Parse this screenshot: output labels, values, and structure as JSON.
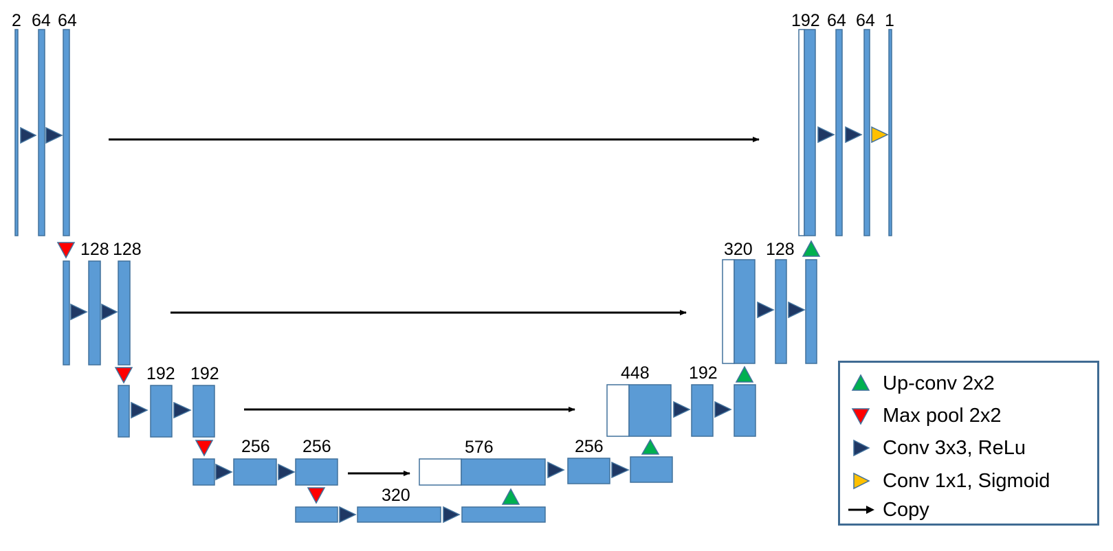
{
  "colors": {
    "block": "#5b9bd5",
    "block_border": "#41719c",
    "conv": "#1f3864",
    "maxpool": "#ff0000",
    "upconv": "#00b050",
    "sigmoid": "#ffc000",
    "arrow": "#000000",
    "legend_border": "#3f6b93"
  },
  "channel_labels": {
    "enc1_in": "2",
    "enc1_a": "64",
    "enc1_b": "64",
    "enc2_a": "128",
    "enc2_b": "128",
    "enc3_a": "192",
    "enc3_b": "192",
    "enc4_a": "256",
    "enc4_b": "256",
    "bottleneck": "320",
    "dec4_concat": "576",
    "dec4_a": "256",
    "dec3_concat": "448",
    "dec3_a": "192",
    "dec2_concat": "320",
    "dec2_a": "128",
    "dec1_concat": "192",
    "dec1_a": "64",
    "dec1_b": "64",
    "out": "1"
  },
  "legend": {
    "upconv": "Up-conv 2x2",
    "maxpool": "Max pool 2x2",
    "conv": "Conv 3x3, ReLu",
    "sigmoid": "Conv 1x1, Sigmoid",
    "copy": "Copy"
  }
}
